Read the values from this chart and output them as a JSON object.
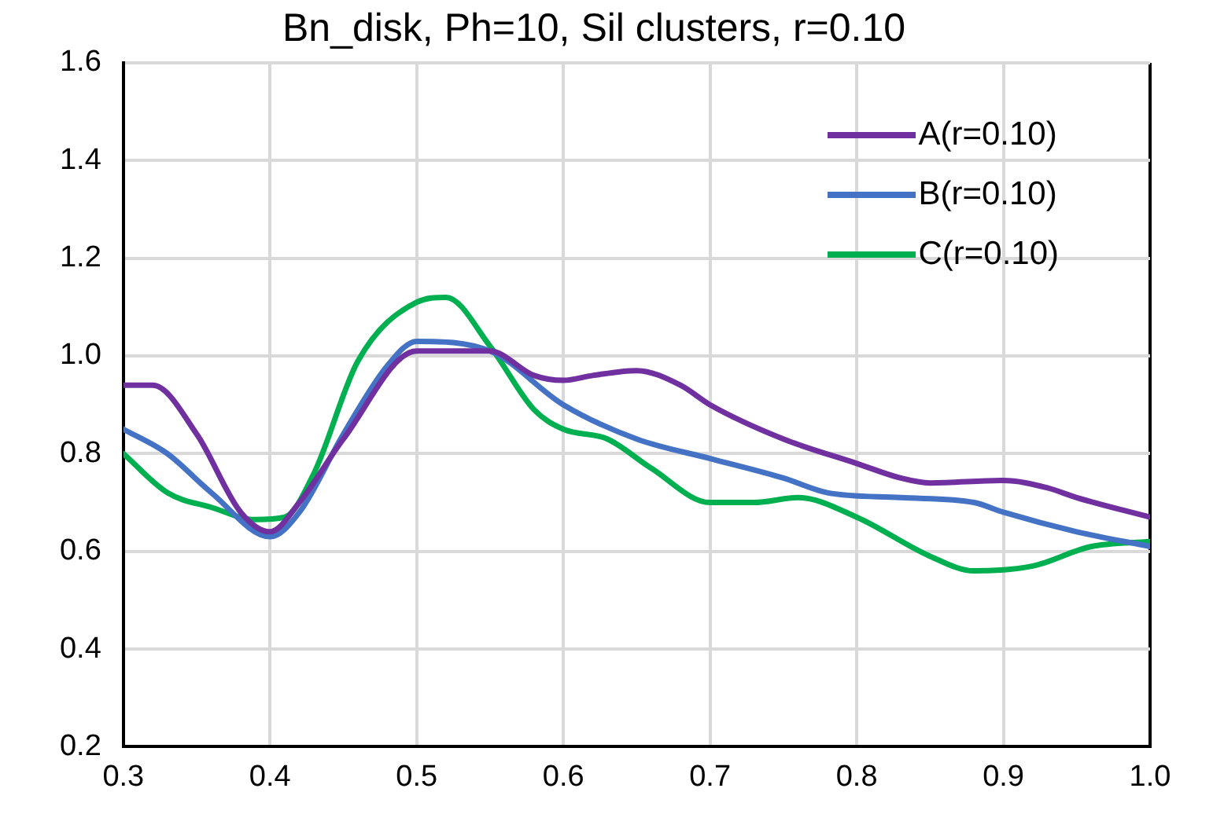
{
  "chart_data": {
    "type": "line",
    "title": "Bn_disk, Ph=10, Sil clusters, r=0.10",
    "xlim": [
      0.3,
      1.0
    ],
    "xticks": [
      0.3,
      0.4,
      0.5,
      0.6,
      0.7,
      0.8,
      0.9,
      {
        "value": 1,
        "label": "1.0"
      }
    ],
    "ylim": [
      0.2,
      1.6
    ],
    "yticks": [
      0.2,
      0.4,
      0.6,
      0.8,
      {
        "value": 1,
        "label": "1.0"
      },
      1.2,
      1.4,
      1.6
    ],
    "grid": true,
    "legend": "top right",
    "marker": "none",
    "line_style": "solid",
    "series": [
      {
        "name": "A(r=0.10)",
        "color": "#7030a0",
        "x": [
          0.3,
          0.32,
          0.35,
          0.38,
          0.4,
          0.42,
          0.45,
          0.5,
          0.55,
          0.58,
          0.6,
          0.62,
          0.65,
          0.68,
          0.7,
          0.75,
          0.8,
          0.83,
          0.85,
          0.9,
          0.93,
          0.95,
          1.0
        ],
        "values": [
          0.94,
          0.94,
          0.84,
          0.68,
          0.64,
          0.7,
          0.83,
          1.01,
          1.01,
          0.96,
          0.95,
          0.96,
          0.97,
          0.94,
          0.9,
          0.83,
          0.78,
          0.75,
          0.74,
          0.745,
          0.73,
          0.71,
          0.67
        ]
      },
      {
        "name": "B(r=0.10)",
        "color": "#4472c4",
        "x": [
          0.3,
          0.33,
          0.36,
          0.4,
          0.42,
          0.45,
          0.48,
          0.5,
          0.55,
          0.6,
          0.65,
          0.7,
          0.75,
          0.78,
          0.83,
          0.88,
          0.9,
          0.95,
          1.0
        ],
        "values": [
          0.85,
          0.8,
          0.72,
          0.63,
          0.68,
          0.84,
          0.98,
          1.03,
          1.01,
          0.9,
          0.83,
          0.79,
          0.75,
          0.72,
          0.71,
          0.7,
          0.68,
          0.64,
          0.61
        ]
      },
      {
        "name": "C(r=0.10)",
        "color": "#00b050",
        "x": [
          0.3,
          0.33,
          0.36,
          0.39,
          0.41,
          0.43,
          0.46,
          0.5,
          0.52,
          0.55,
          0.58,
          0.6,
          0.63,
          0.66,
          0.7,
          0.73,
          0.76,
          0.8,
          0.85,
          0.88,
          0.92,
          0.96,
          1.0
        ],
        "values": [
          0.8,
          0.72,
          0.69,
          0.665,
          0.67,
          0.76,
          0.99,
          1.11,
          1.12,
          1.02,
          0.89,
          0.85,
          0.83,
          0.77,
          0.7,
          0.7,
          0.71,
          0.67,
          0.59,
          0.56,
          0.57,
          0.61,
          0.62
        ]
      }
    ]
  }
}
